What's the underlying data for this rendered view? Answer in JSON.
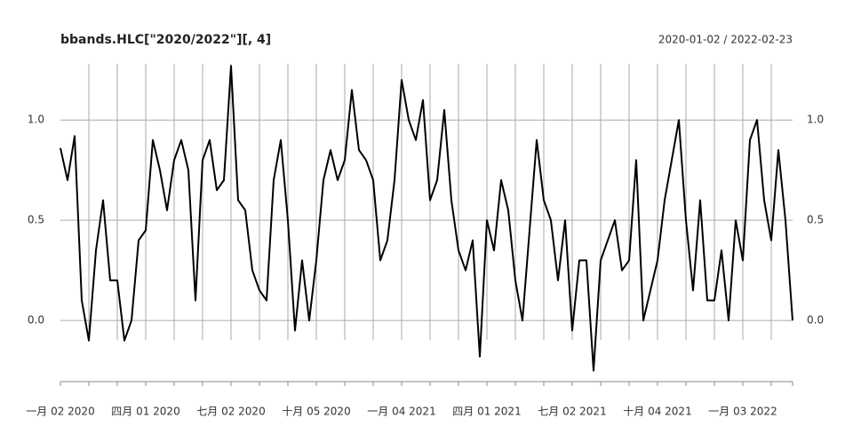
{
  "chart_data": {
    "type": "line",
    "title": "bbands.HLC[\"2020/2022\"][, 4]",
    "subtitle": "2020-01-02 / 2022-02-23",
    "categories": [
      "一月 02 2020",
      null,
      null,
      null,
      null,
      null,
      null,
      null,
      null,
      null,
      null,
      null,
      "四月 01 2020",
      null,
      null,
      null,
      null,
      null,
      null,
      null,
      null,
      null,
      null,
      null,
      "七月 02 2020",
      null,
      null,
      null,
      null,
      null,
      null,
      null,
      null,
      null,
      null,
      null,
      "十月 05 2020",
      null,
      null,
      null,
      null,
      null,
      null,
      null,
      null,
      null,
      null,
      null,
      "一月 04 2021",
      null,
      null,
      null,
      null,
      null,
      null,
      null,
      null,
      null,
      null,
      null,
      "四月 01 2021",
      null,
      null,
      null,
      null,
      null,
      null,
      null,
      null,
      null,
      null,
      null,
      "七月 02 2021",
      null,
      null,
      null,
      null,
      null,
      null,
      null,
      null,
      null,
      null,
      null,
      "十月 04 2021",
      null,
      null,
      null,
      null,
      null,
      null,
      null,
      null,
      null,
      null,
      null,
      "一月 03 2022",
      null,
      null,
      null,
      null,
      null,
      null,
      null
    ],
    "series": [
      {
        "color": "#000000",
        "values": [
          0.86,
          0.7,
          0.92,
          0.1,
          -0.1,
          0.35,
          0.6,
          0.2,
          0.2,
          -0.1,
          0.0,
          0.4,
          0.45,
          0.9,
          0.75,
          0.55,
          0.8,
          0.9,
          0.75,
          0.1,
          0.8,
          0.9,
          0.65,
          0.7,
          1.27,
          0.6,
          0.55,
          0.25,
          0.15,
          0.1,
          0.7,
          0.9,
          0.5,
          -0.05,
          0.3,
          0.0,
          0.3,
          0.7,
          0.85,
          0.7,
          0.8,
          1.15,
          0.85,
          0.8,
          0.7,
          0.3,
          0.4,
          0.7,
          1.2,
          1.0,
          0.9,
          1.1,
          0.6,
          0.7,
          1.05,
          0.6,
          0.35,
          0.25,
          0.4,
          -0.18,
          0.5,
          0.35,
          0.7,
          0.55,
          0.2,
          0.0,
          0.45,
          0.9,
          0.6,
          0.5,
          0.2,
          0.5,
          -0.05,
          0.3,
          0.3,
          -0.25,
          0.3,
          0.4,
          0.5,
          0.25,
          0.3,
          0.8,
          0.0,
          0.15,
          0.3,
          0.6,
          0.8,
          1.0,
          0.5,
          0.15,
          0.6,
          0.1,
          0.1,
          0.35,
          0.0,
          0.5,
          0.3,
          0.9,
          1.0,
          0.6,
          0.4,
          0.85,
          0.5,
          0.0
        ]
      }
    ],
    "ylim": [
      -0.305,
      1.28
    ],
    "yticks": [
      {
        "value": 0,
        "label": "0.0"
      },
      {
        "value": 0.5,
        "label": "0.5"
      },
      {
        "value": 1,
        "label": "1.0"
      }
    ],
    "grid": true
  }
}
